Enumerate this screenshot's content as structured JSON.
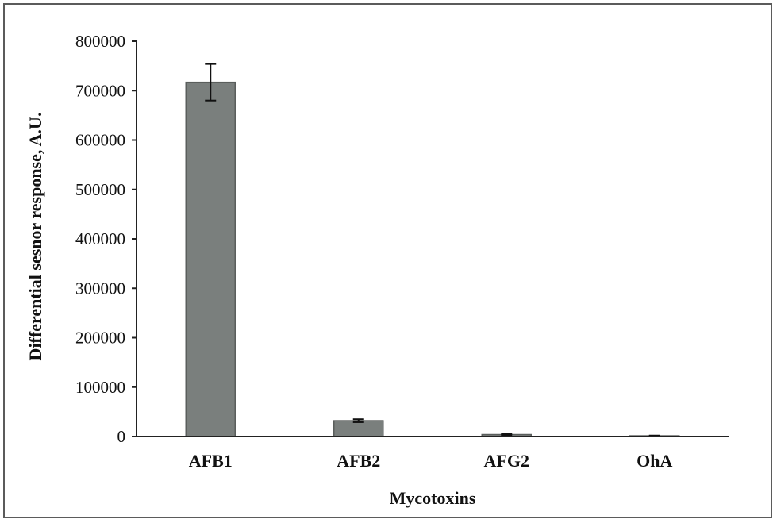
{
  "chart_data": {
    "type": "bar",
    "categories": [
      "AFB1",
      "AFB2",
      "AFG2",
      "OhA"
    ],
    "values": [
      717000,
      32000,
      4000,
      1500
    ],
    "errors": [
      37000,
      3000,
      1000,
      500
    ],
    "xlabel": "Mycotoxins",
    "ylabel": "Differential sesnor response, A.U.",
    "ylim": [
      0,
      800000
    ],
    "yticks": [
      "0",
      "100000",
      "200000",
      "300000",
      "400000",
      "500000",
      "600000",
      "700000",
      "800000"
    ],
    "grid": false,
    "bar_color": "#7a7f7d",
    "bar_edge_color": "#5a5e5c"
  }
}
